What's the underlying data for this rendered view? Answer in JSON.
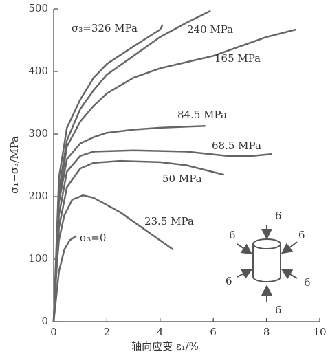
{
  "chart_data": {
    "type": "line",
    "xlabel": "轴向应变 ε₁/%",
    "ylabel": "σ₁−σ₃/MPa",
    "xlim": [
      0,
      10
    ],
    "xticks": [
      0,
      2,
      4,
      6,
      8,
      10
    ],
    "ylim": [
      0,
      500
    ],
    "yticks": [
      0,
      100,
      200,
      300,
      400,
      500
    ],
    "series": [
      {
        "name": "σ₃=326 MPa",
        "color": "#666666",
        "x": [
          0,
          0.2,
          0.5,
          1,
          1.5,
          2,
          3,
          4,
          4.1
        ],
        "values": [
          0,
          230,
          310,
          355,
          390,
          412,
          440,
          467,
          475
        ]
      },
      {
        "name": "240 MPa",
        "color": "#666666",
        "x": [
          0,
          0.2,
          0.5,
          1,
          1.5,
          2,
          3,
          4,
          5,
          5.9
        ],
        "values": [
          0,
          210,
          290,
          340,
          370,
          395,
          425,
          455,
          478,
          497
        ]
      },
      {
        "name": "165 MPa",
        "color": "#666666",
        "x": [
          0,
          0.2,
          0.5,
          1,
          1.5,
          2,
          3,
          4,
          5,
          6,
          7,
          8,
          9.1
        ],
        "values": [
          0,
          200,
          280,
          320,
          345,
          365,
          390,
          405,
          415,
          425,
          440,
          455,
          467
        ]
      },
      {
        "name": "84.5 MPa",
        "color": "#666666",
        "x": [
          0,
          0.2,
          0.5,
          1,
          1.5,
          2,
          3,
          4,
          5.7
        ],
        "values": [
          0,
          190,
          260,
          285,
          295,
          302,
          307,
          310,
          313
        ]
      },
      {
        "name": "68.5 MPa",
        "color": "#666666",
        "x": [
          0,
          0.2,
          0.5,
          1,
          1.5,
          3,
          5,
          6.5,
          7.5,
          8.2
        ],
        "values": [
          0,
          170,
          240,
          265,
          272,
          274,
          272,
          265,
          265,
          268
        ]
      },
      {
        "name": "50 MPa",
        "color": "#666666",
        "x": [
          0,
          0.2,
          0.5,
          1,
          1.5,
          2.5,
          4,
          5,
          6.4
        ],
        "values": [
          0,
          150,
          215,
          245,
          254,
          257,
          255,
          250,
          235
        ]
      },
      {
        "name": "23.5 MPa",
        "color": "#666666",
        "x": [
          0,
          0.1,
          0.2,
          0.4,
          0.7,
          1.1,
          1.5,
          2.5,
          3.5,
          4.5
        ],
        "values": [
          0,
          80,
          130,
          170,
          195,
          202,
          198,
          175,
          145,
          115
        ]
      },
      {
        "name": "σ₃=0",
        "color": "#666666",
        "x": [
          0,
          0.2,
          0.4,
          0.6,
          0.85
        ],
        "values": [
          0,
          80,
          115,
          130,
          137
        ]
      }
    ]
  },
  "inset": {
    "labels": [
      "6",
      "6",
      "6",
      "6",
      "6",
      "6"
    ]
  }
}
